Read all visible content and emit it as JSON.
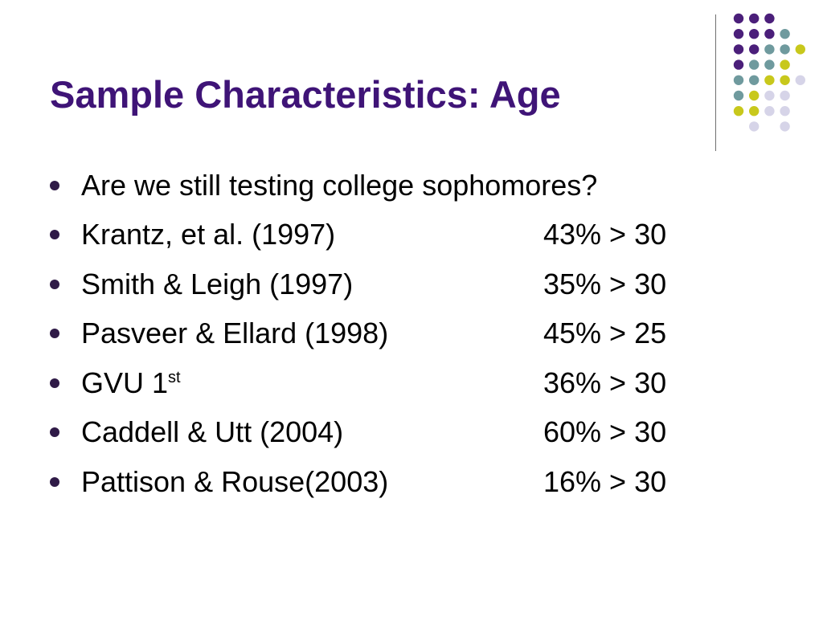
{
  "slide": {
    "title": "Sample Characteristics: Age",
    "bullets": [
      {
        "text": "Are we still testing college sophomores?",
        "value": ""
      },
      {
        "text": "Krantz, et al. (1997)",
        "value": "43% > 30"
      },
      {
        "text": "Smith & Leigh (1997)",
        "value": "35% > 30"
      },
      {
        "text": "Pasveer & Ellard (1998)",
        "value": "45% > 25"
      },
      {
        "text": "GVU 1",
        "sup": "st",
        "value": "36% > 30"
      },
      {
        "text": "Caddell & Utt (2004)",
        "value": "60% > 30"
      },
      {
        "text": "Pattison & Rouse(2003)",
        "value": "16% > 30"
      }
    ]
  },
  "theme": {
    "title_color": "#3f1477",
    "dot_colors": {
      "purple": "#4b1f7a",
      "teal": "#6f9a9e",
      "olive": "#c8c81c",
      "lavender": "#d6d4e8"
    }
  }
}
